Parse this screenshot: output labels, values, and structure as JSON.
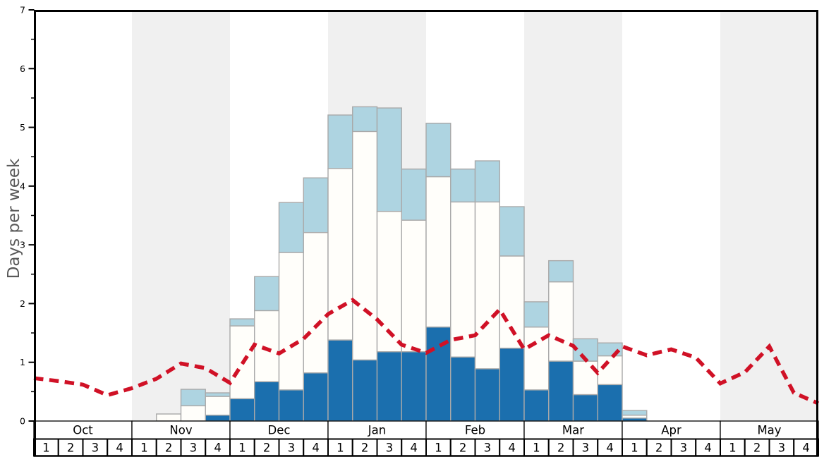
{
  "chart_data": {
    "type": "bar",
    "title": "",
    "ylabel": "Days per week",
    "y_axis": {
      "min": 0,
      "max": 7,
      "major_tick": 1,
      "minor_tick": 0.5,
      "tick_labels": [
        "0",
        "1",
        "2",
        "3",
        "4",
        "5",
        "6",
        "7"
      ]
    },
    "x_axis": {
      "months": [
        {
          "label": "Oct",
          "shaded": false
        },
        {
          "label": "Nov",
          "shaded": true
        },
        {
          "label": "Dec",
          "shaded": false
        },
        {
          "label": "Jan",
          "shaded": true
        },
        {
          "label": "Feb",
          "shaded": false
        },
        {
          "label": "Mar",
          "shaded": true
        },
        {
          "label": "Apr",
          "shaded": false
        },
        {
          "label": "May",
          "shaded": true
        }
      ],
      "week_labels": [
        "1",
        "2",
        "3",
        "4"
      ]
    },
    "series": [
      {
        "name": "dark_blue_bottom",
        "color": "#1b6fae",
        "values": [
          0,
          0,
          0,
          0,
          0,
          0,
          0,
          0.1,
          0.38,
          0.67,
          0.53,
          0.82,
          1.38,
          1.04,
          1.18,
          1.18,
          1.6,
          1.09,
          0.89,
          1.24,
          0.53,
          1.02,
          0.45,
          0.62,
          0.05,
          0,
          0,
          0,
          0,
          0,
          0,
          0
        ]
      },
      {
        "name": "white_middle",
        "color": "#fffefa",
        "values": [
          0,
          0,
          0,
          0,
          0,
          0.12,
          0.26,
          0.32,
          1.24,
          1.21,
          2.34,
          2.39,
          2.92,
          3.89,
          2.39,
          2.24,
          2.56,
          2.64,
          2.84,
          1.57,
          1.07,
          1.35,
          0.57,
          0.49,
          0.05,
          0,
          0,
          0,
          0,
          0,
          0,
          0
        ]
      },
      {
        "name": "light_blue_top",
        "color": "#aed4e1",
        "values": [
          0,
          0,
          0,
          0,
          0,
          0,
          0.28,
          0.06,
          0.12,
          0.58,
          0.85,
          0.93,
          0.91,
          0.42,
          1.76,
          0.87,
          0.91,
          0.56,
          0.7,
          0.84,
          0.43,
          0.36,
          0.38,
          0.22,
          0.08,
          0,
          0,
          0,
          0,
          0,
          0,
          0
        ]
      }
    ],
    "red_dashed_line": {
      "name": "red_dashed_line",
      "color": "#d01126",
      "x_positions": "week_boundaries",
      "values": [
        0.73,
        0.68,
        0.62,
        0.44,
        0.56,
        0.72,
        0.98,
        0.9,
        0.65,
        1.3,
        1.15,
        1.4,
        1.82,
        2.06,
        1.73,
        1.3,
        1.16,
        1.38,
        1.46,
        1.9,
        1.22,
        1.46,
        1.28,
        0.82,
        1.27,
        1.12,
        1.22,
        1.08,
        0.64,
        0.83,
        1.27,
        0.48,
        0.3
      ]
    },
    "layout": {
      "grid": false,
      "legend": "none",
      "band_color": "#f0f0f0",
      "bar_border_color": "#a9a9a9",
      "spine_color": "#000000"
    }
  }
}
